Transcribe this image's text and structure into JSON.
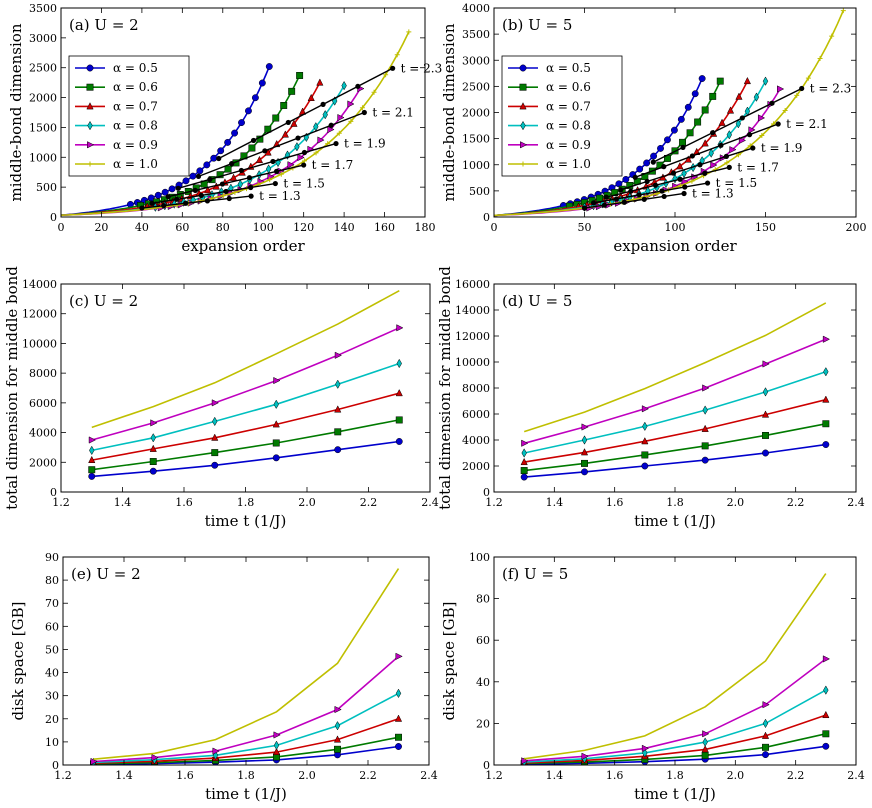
{
  "colors": {
    "a05": "#0000cc",
    "a06": "#007a00",
    "a07": "#cc0000",
    "a08": "#00bfbf",
    "a09": "#bf00bf",
    "a10": "#bfbf00",
    "t_lines": "#000000"
  },
  "chart_data": [
    {
      "type": "line",
      "title": "(a) U = 2",
      "xlabel": "expansion order",
      "ylabel": "middle-bond dimension",
      "xlim": [
        0,
        180
      ],
      "ylim": [
        0,
        3500
      ],
      "xticks": [
        0,
        20,
        40,
        60,
        80,
        100,
        120,
        140,
        160,
        180
      ],
      "yticks": [
        0,
        500,
        1000,
        1500,
        2000,
        2500,
        3000,
        3500
      ],
      "legend_position": "upper-left",
      "series": [
        {
          "name": "α = 0.5",
          "color": "#0000cc",
          "marker": "circle",
          "x_end": 103,
          "y_end": 2520
        },
        {
          "name": "α = 0.6",
          "color": "#007a00",
          "marker": "square",
          "x_end": 118,
          "y_end": 2370
        },
        {
          "name": "α = 0.7",
          "color": "#cc0000",
          "marker": "triangle-up",
          "x_end": 128,
          "y_end": 2250
        },
        {
          "name": "α = 0.8",
          "color": "#00bfbf",
          "marker": "diamond",
          "x_end": 140,
          "y_end": 2200
        },
        {
          "name": "α = 0.9",
          "color": "#bf00bf",
          "marker": "triangle-right",
          "x_end": 148,
          "y_end": 2150
        },
        {
          "name": "α = 1.0",
          "color": "#bfbf00",
          "marker": "plus",
          "x_end": 172,
          "y_end": 3100
        }
      ],
      "t_markers": [
        {
          "label": "t = 1.3",
          "x": [
            40,
            94
          ],
          "y": [
            150,
            350
          ]
        },
        {
          "label": "t = 1.5",
          "x": [
            45,
            106
          ],
          "y": [
            230,
            560
          ]
        },
        {
          "label": "t = 1.7",
          "x": [
            53,
            120
          ],
          "y": [
            340,
            870
          ]
        },
        {
          "label": "t = 1.9",
          "x": [
            58,
            136
          ],
          "y": [
            480,
            1230
          ]
        },
        {
          "label": "t = 2.1",
          "x": [
            68,
            150
          ],
          "y": [
            680,
            1750
          ]
        },
        {
          "label": "t = 2.3",
          "x": [
            78,
            164
          ],
          "y": [
            980,
            2490
          ]
        }
      ]
    },
    {
      "type": "line",
      "title": "(b) U = 5",
      "xlabel": "expansion order",
      "ylabel": "middle-bond dimension",
      "xlim": [
        0,
        200
      ],
      "ylim": [
        0,
        4000
      ],
      "xticks": [
        0,
        50,
        100,
        150,
        200
      ],
      "yticks": [
        0,
        500,
        1000,
        1500,
        2000,
        2500,
        3000,
        3500,
        4000
      ],
      "legend_position": "upper-left",
      "series": [
        {
          "name": "α = 0.5",
          "color": "#0000cc",
          "marker": "circle",
          "x_end": 115,
          "y_end": 2650
        },
        {
          "name": "α = 0.6",
          "color": "#007a00",
          "marker": "square",
          "x_end": 125,
          "y_end": 2600
        },
        {
          "name": "α = 0.7",
          "color": "#cc0000",
          "marker": "triangle-up",
          "x_end": 140,
          "y_end": 2600
        },
        {
          "name": "α = 0.8",
          "color": "#00bfbf",
          "marker": "diamond",
          "x_end": 150,
          "y_end": 2600
        },
        {
          "name": "α = 0.9",
          "color": "#bf00bf",
          "marker": "triangle-right",
          "x_end": 158,
          "y_end": 2450
        },
        {
          "name": "α = 1.0",
          "color": "#bfbf00",
          "marker": "plus",
          "x_end": 193,
          "y_end": 3950
        }
      ],
      "t_markers": [
        {
          "label": "t = 1.3",
          "x": [
            50,
            105
          ],
          "y": [
            170,
            450
          ]
        },
        {
          "label": "t = 1.5",
          "x": [
            55,
            118
          ],
          "y": [
            270,
            650
          ]
        },
        {
          "label": "t = 1.7",
          "x": [
            62,
            130
          ],
          "y": [
            380,
            950
          ]
        },
        {
          "label": "t = 1.9",
          "x": [
            70,
            143
          ],
          "y": [
            520,
            1320
          ]
        },
        {
          "label": "t = 2.1",
          "x": [
            78,
            157
          ],
          "y": [
            760,
            1780
          ]
        },
        {
          "label": "t = 2.3",
          "x": [
            88,
            170
          ],
          "y": [
            1050,
            2460
          ]
        }
      ]
    },
    {
      "type": "line",
      "title": "(c) U = 2",
      "xlabel": "time t (1/J)",
      "ylabel": "total dimension for middle bond",
      "xlim": [
        1.2,
        2.4
      ],
      "ylim": [
        0,
        14000
      ],
      "xticks": [
        1.2,
        1.4,
        1.6,
        1.8,
        2.0,
        2.2,
        2.4
      ],
      "yticks": [
        0,
        2000,
        4000,
        6000,
        8000,
        10000,
        12000,
        14000
      ],
      "x": [
        1.3,
        1.5,
        1.7,
        1.9,
        2.1,
        2.3
      ],
      "series": [
        {
          "name": "α = 0.5",
          "color": "#0000cc",
          "marker": "circle",
          "values": [
            1050,
            1400,
            1800,
            2300,
            2850,
            3400
          ]
        },
        {
          "name": "α = 0.6",
          "color": "#007a00",
          "marker": "square",
          "values": [
            1500,
            2050,
            2650,
            3300,
            4050,
            4850
          ]
        },
        {
          "name": "α = 0.7",
          "color": "#cc0000",
          "marker": "triangle-up",
          "values": [
            2150,
            2900,
            3650,
            4550,
            5550,
            6650
          ]
        },
        {
          "name": "α = 0.8",
          "color": "#00bfbf",
          "marker": "diamond",
          "values": [
            2800,
            3650,
            4750,
            5900,
            7250,
            8650
          ]
        },
        {
          "name": "α = 0.9",
          "color": "#bf00bf",
          "marker": "triangle-right",
          "values": [
            3500,
            4650,
            6000,
            7500,
            9200,
            11050
          ]
        },
        {
          "name": "α = 1.0",
          "color": "#bfbf00",
          "marker": "none",
          "values": [
            4350,
            5750,
            7350,
            9300,
            11300,
            13550
          ]
        }
      ]
    },
    {
      "type": "line",
      "title": "(d) U = 5",
      "xlabel": "time t (1/J)",
      "ylabel": "total dimension for middle bond",
      "xlim": [
        1.2,
        2.4
      ],
      "ylim": [
        0,
        16000
      ],
      "xticks": [
        1.2,
        1.4,
        1.6,
        1.8,
        2.0,
        2.2,
        2.4
      ],
      "yticks": [
        0,
        2000,
        4000,
        6000,
        8000,
        10000,
        12000,
        14000,
        16000
      ],
      "x": [
        1.3,
        1.5,
        1.7,
        1.9,
        2.1,
        2.3
      ],
      "series": [
        {
          "name": "α = 0.5",
          "color": "#0000cc",
          "marker": "circle",
          "values": [
            1150,
            1550,
            2000,
            2450,
            3000,
            3650
          ]
        },
        {
          "name": "α = 0.6",
          "color": "#007a00",
          "marker": "square",
          "values": [
            1650,
            2200,
            2850,
            3550,
            4350,
            5250
          ]
        },
        {
          "name": "α = 0.7",
          "color": "#cc0000",
          "marker": "triangle-up",
          "values": [
            2300,
            3050,
            3900,
            4850,
            5950,
            7100
          ]
        },
        {
          "name": "α = 0.8",
          "color": "#00bfbf",
          "marker": "diamond",
          "values": [
            3000,
            4000,
            5050,
            6300,
            7700,
            9250
          ]
        },
        {
          "name": "α = 0.9",
          "color": "#bf00bf",
          "marker": "triangle-right",
          "values": [
            3750,
            5000,
            6400,
            8000,
            9850,
            11750
          ]
        },
        {
          "name": "α = 1.0",
          "color": "#bfbf00",
          "marker": "none",
          "values": [
            4650,
            6150,
            7950,
            9950,
            12050,
            14550
          ]
        }
      ]
    },
    {
      "type": "line",
      "title": "(e) U = 2",
      "xlabel": "time t (1/J)",
      "ylabel": "disk space [GB]",
      "xlim": [
        1.2,
        2.4
      ],
      "ylim": [
        0,
        90
      ],
      "xticks": [
        1.2,
        1.4,
        1.6,
        1.8,
        2.0,
        2.2,
        2.4
      ],
      "yticks": [
        0,
        10,
        20,
        30,
        40,
        50,
        60,
        70,
        80,
        90
      ],
      "x": [
        1.3,
        1.5,
        1.7,
        1.9,
        2.1,
        2.3
      ],
      "series": [
        {
          "name": "α = 0.5",
          "color": "#0000cc",
          "marker": "circle",
          "values": [
            0.3,
            0.6,
            1.2,
            2.2,
            4.4,
            8
          ]
        },
        {
          "name": "α = 0.6",
          "color": "#007a00",
          "marker": "square",
          "values": [
            0.5,
            1.0,
            2.0,
            3.5,
            6.8,
            12
          ]
        },
        {
          "name": "α = 0.7",
          "color": "#cc0000",
          "marker": "triangle-up",
          "values": [
            0.8,
            1.6,
            3.0,
            5.6,
            11,
            20
          ]
        },
        {
          "name": "α = 0.8",
          "color": "#00bfbf",
          "marker": "diamond",
          "values": [
            1.1,
            2.3,
            4.2,
            8.5,
            17,
            31
          ]
        },
        {
          "name": "α = 0.9",
          "color": "#bf00bf",
          "marker": "triangle-right",
          "values": [
            1.5,
            3.2,
            6.0,
            13,
            24,
            47
          ]
        },
        {
          "name": "α = 1.0",
          "color": "#bfbf00",
          "marker": "none",
          "values": [
            2.5,
            5.0,
            11,
            23,
            44,
            85
          ]
        }
      ]
    },
    {
      "type": "line",
      "title": "(f) U = 5",
      "xlabel": "time t (1/J)",
      "ylabel": "disk space [GB]",
      "xlim": [
        1.2,
        2.4
      ],
      "ylim": [
        0,
        100
      ],
      "xticks": [
        1.2,
        1.4,
        1.6,
        1.8,
        2.0,
        2.2,
        2.4
      ],
      "yticks": [
        0,
        20,
        40,
        60,
        80,
        100
      ],
      "x": [
        1.3,
        1.5,
        1.7,
        1.9,
        2.1,
        2.3
      ],
      "series": [
        {
          "name": "α = 0.5",
          "color": "#0000cc",
          "marker": "circle",
          "values": [
            0.4,
            0.8,
            1.6,
            2.8,
            5.0,
            9
          ]
        },
        {
          "name": "α = 0.6",
          "color": "#007a00",
          "marker": "square",
          "values": [
            0.7,
            1.4,
            2.7,
            4.6,
            8.5,
            15
          ]
        },
        {
          "name": "α = 0.7",
          "color": "#cc0000",
          "marker": "triangle-up",
          "values": [
            1.0,
            2.2,
            4.2,
            7.5,
            14,
            24
          ]
        },
        {
          "name": "α = 0.8",
          "color": "#00bfbf",
          "marker": "diamond",
          "values": [
            1.4,
            3.0,
            5.8,
            11,
            20,
            36
          ]
        },
        {
          "name": "α = 0.9",
          "color": "#bf00bf",
          "marker": "triangle-right",
          "values": [
            2.0,
            4.2,
            8.0,
            15,
            29,
            51
          ]
        },
        {
          "name": "α = 1.0",
          "color": "#bfbf00",
          "marker": "none",
          "values": [
            3.0,
            7.0,
            14,
            28,
            50,
            92
          ]
        }
      ]
    }
  ]
}
